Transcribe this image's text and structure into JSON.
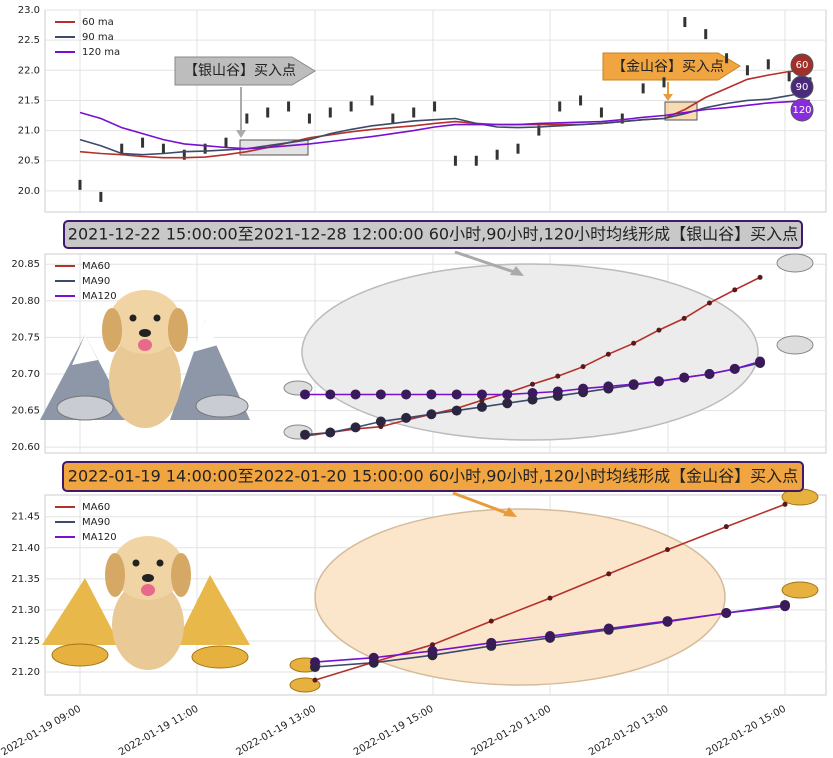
{
  "chart_data": [
    {
      "type": "candlestick",
      "candles": [
        20.1,
        19.9,
        20.7,
        20.8,
        20.7,
        20.6,
        20.7,
        20.8,
        21.2,
        21.3,
        21.4,
        21.2,
        21.3,
        21.4,
        21.5,
        21.2,
        21.3,
        21.4,
        20.5,
        20.5,
        20.6,
        20.7,
        21.0,
        21.4,
        21.5,
        21.3,
        21.2,
        21.7,
        21.8,
        22.8,
        22.6,
        22.2,
        22.0,
        22.1,
        21.9,
        21.8
      ],
      "series": [
        {
          "name": "60 ma",
          "color": "#b5302a",
          "values": [
            20.65,
            20.62,
            20.6,
            20.57,
            20.55,
            20.55,
            20.56,
            20.6,
            20.65,
            20.72,
            20.8,
            20.88,
            20.93,
            20.98,
            21.02,
            21.05,
            21.08,
            21.12,
            21.15,
            21.12,
            21.1,
            21.1,
            21.1,
            21.1,
            21.1,
            21.12,
            21.15,
            21.18,
            21.2,
            21.35,
            21.55,
            21.7,
            21.85,
            21.92,
            21.98,
            22.0
          ]
        },
        {
          "name": "90 ma",
          "color": "#3c4a6b",
          "values": [
            20.85,
            20.75,
            20.62,
            20.6,
            20.62,
            20.65,
            20.66,
            20.68,
            20.7,
            20.75,
            20.8,
            20.85,
            20.95,
            21.02,
            21.08,
            21.12,
            21.16,
            21.18,
            21.2,
            21.12,
            21.06,
            21.05,
            21.06,
            21.08,
            21.1,
            21.12,
            21.15,
            21.18,
            21.2,
            21.28,
            21.38,
            21.45,
            21.5,
            21.52,
            21.58,
            21.65
          ]
        },
        {
          "name": "120 ma",
          "color": "#7a0fd0",
          "values": [
            21.3,
            21.2,
            21.05,
            20.95,
            20.85,
            20.78,
            20.75,
            20.72,
            20.7,
            20.72,
            20.75,
            20.78,
            20.82,
            20.86,
            20.9,
            20.95,
            21.0,
            21.06,
            21.1,
            21.1,
            21.1,
            21.1,
            21.12,
            21.13,
            21.14,
            21.15,
            21.18,
            21.22,
            21.25,
            21.3,
            21.35,
            21.38,
            21.42,
            21.46,
            21.48,
            21.5
          ]
        }
      ],
      "annotations": [
        "【银山谷】买入点",
        "【金山谷】买入点"
      ],
      "end_labels": [
        "60",
        "90",
        "120"
      ],
      "ylim": [
        19.65,
        23.0
      ],
      "yticks": [
        {
          "value": 20,
          "label": "20.0"
        },
        20.5,
        {
          "value": 21,
          "label": "21.0"
        },
        21.5,
        {
          "value": 22,
          "label": "22.0"
        },
        22.5,
        {
          "value": 23,
          "label": "23.0"
        }
      ],
      "grid": true
    },
    {
      "type": "line",
      "title": "2021-12-22 15:00:00至2021-12-28 12:00:00 60小时,90小时,120小时均线形成【银山谷】买入点",
      "series": [
        {
          "name": "MA60",
          "color": "#b5302a",
          "values": [
            20.615,
            20.62,
            20.625,
            20.628,
            20.637,
            20.645,
            20.653,
            20.664,
            20.674,
            20.686,
            20.697,
            20.71,
            20.727,
            20.742,
            20.76,
            20.776,
            20.797,
            20.815,
            20.832
          ]
        },
        {
          "name": "MA90",
          "color": "#3c4a6b",
          "values": [
            20.617,
            20.62,
            20.627,
            20.635,
            20.64,
            20.645,
            20.65,
            20.655,
            20.66,
            20.665,
            20.67,
            20.675,
            20.68,
            20.685,
            20.69,
            20.695,
            20.7,
            20.707,
            20.715
          ]
        },
        {
          "name": "MA120",
          "color": "#7a0fd0",
          "values": [
            20.672,
            20.672,
            20.672,
            20.672,
            20.672,
            20.672,
            20.672,
            20.672,
            20.672,
            20.674,
            20.676,
            20.68,
            20.683,
            20.686,
            20.69,
            20.695,
            20.7,
            20.707,
            20.717
          ]
        }
      ],
      "ylim": [
        20.592,
        20.864
      ],
      "yticks": [
        {
          "value": 20.6,
          "label": "20.60"
        },
        20.65,
        {
          "value": 20.7,
          "label": "20.70"
        },
        20.75,
        {
          "value": 20.8,
          "label": "20.80"
        },
        20.85
      ],
      "grid": true
    },
    {
      "type": "line",
      "title": "2022-01-19 14:00:00至2022-01-20 15:00:00 60小时,90小时,120小时均线形成【金山谷】买入点",
      "categories": [
        "2022-01-19 09:00",
        null,
        "2022-01-19 11:00",
        null,
        "2022-01-19 13:00",
        null,
        "2022-01-19 15:00",
        null,
        "2022-01-20 11:00",
        null,
        "2022-01-20 13:00",
        null,
        "2022-01-20 15:00"
      ],
      "series": [
        {
          "name": "MA60",
          "color": "#b5302a",
          "values": [
            null,
            null,
            null,
            null,
            21.187,
            21.216,
            21.244,
            21.282,
            21.319,
            21.358,
            21.397,
            21.434,
            21.47
          ]
        },
        {
          "name": "MA90",
          "color": "#3c4a6b",
          "values": [
            null,
            null,
            null,
            null,
            21.208,
            21.215,
            21.227,
            21.242,
            21.255,
            21.268,
            21.281,
            21.295,
            21.308
          ]
        },
        {
          "name": "MA120",
          "color": "#7a0fd0",
          "values": [
            null,
            null,
            null,
            null,
            21.216,
            21.223,
            21.234,
            21.247,
            21.258,
            21.27,
            21.282,
            21.295,
            21.306
          ]
        }
      ],
      "ylim": [
        21.163,
        21.485
      ],
      "yticks": [
        {
          "value": 21.2,
          "label": "21.20"
        },
        21.25,
        {
          "value": 21.3,
          "label": "21.30"
        },
        21.35,
        {
          "value": 21.4,
          "label": "21.40"
        },
        21.45
      ],
      "grid": true
    }
  ]
}
